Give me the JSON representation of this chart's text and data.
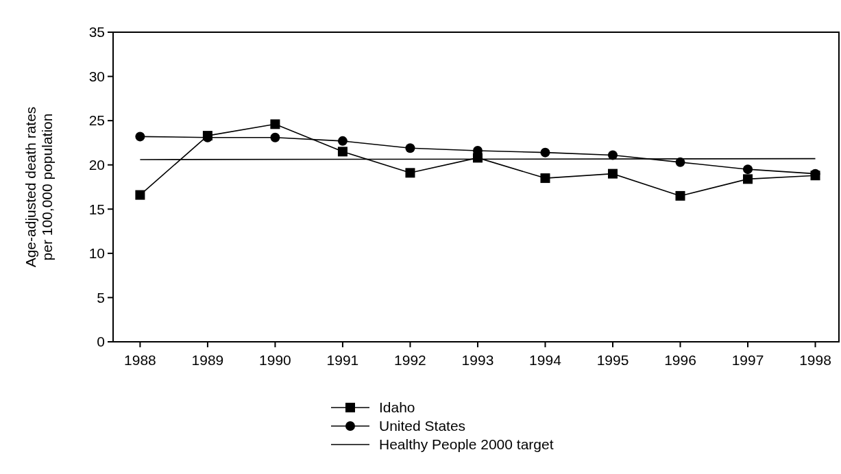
{
  "chart_data": {
    "type": "line",
    "ylabel": "Age-adjusted death rates\nper 100,000 population",
    "x": [
      1988,
      1989,
      1990,
      1991,
      1992,
      1993,
      1994,
      1995,
      1996,
      1997,
      1998
    ],
    "xlim": [
      1987.6,
      1998.35
    ],
    "xticks": [
      1988,
      1989,
      1990,
      1991,
      1992,
      1993,
      1994,
      1995,
      1996,
      1997,
      1998
    ],
    "ylim": [
      0,
      35
    ],
    "yticks": [
      0,
      5,
      10,
      15,
      20,
      25,
      30,
      35
    ],
    "grid": false,
    "legend": "bottom",
    "series": [
      {
        "name": "Idaho",
        "color": "#000000",
        "marker": "square",
        "values": [
          16.6,
          23.3,
          24.6,
          21.5,
          19.1,
          20.8,
          18.5,
          19.0,
          16.5,
          18.4,
          18.8
        ]
      },
      {
        "name": "United States",
        "color": "#000000",
        "marker": "circle",
        "values": [
          23.2,
          23.1,
          23.1,
          22.7,
          21.9,
          21.6,
          21.4,
          21.1,
          20.3,
          19.5,
          19.0
        ]
      },
      {
        "name": "Healthy People 2000 target",
        "color": "#000000",
        "marker": "none",
        "x": [
          1988,
          1998
        ],
        "values": [
          20.6,
          20.7
        ]
      }
    ]
  }
}
